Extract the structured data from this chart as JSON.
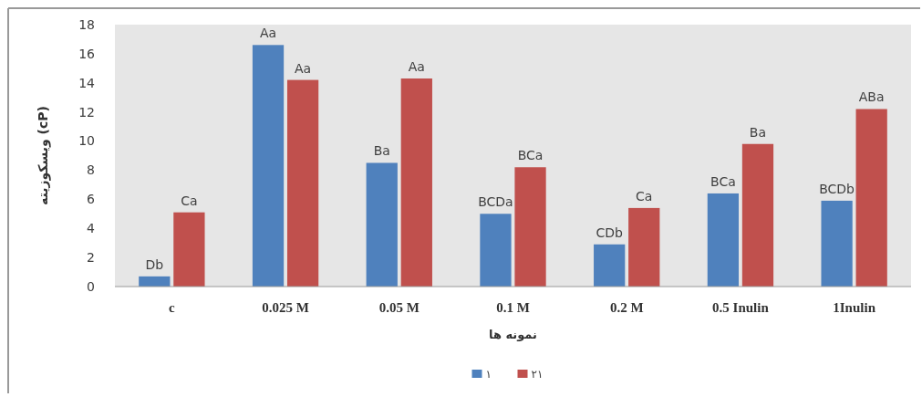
{
  "chart_data": {
    "type": "bar",
    "xlabel": "نمونه ها",
    "ylabel": "ویسکوزیته (cP)",
    "categories": [
      "c",
      "0.025 M",
      "0.05 M",
      "0.1 M",
      "0.2 M",
      "0.5 Inulin",
      "1Inulin"
    ],
    "series": [
      {
        "name": "۱",
        "color": "#4f81bd",
        "values": [
          0.7,
          16.6,
          8.5,
          5.0,
          2.9,
          6.4,
          5.9
        ],
        "value_labels": [
          "Db",
          "Aa",
          "Ba",
          "BCDa",
          "CDb",
          "BCa",
          "BCDb"
        ]
      },
      {
        "name": "۲۱",
        "color": "#c0504d",
        "values": [
          5.1,
          14.2,
          14.3,
          8.2,
          5.4,
          9.8,
          12.2
        ],
        "value_labels": [
          "Ca",
          "Aa",
          "Aa",
          "BCa",
          "Ca",
          "Ba",
          "ABa"
        ]
      }
    ],
    "ylim": [
      0,
      18
    ],
    "yticks": [
      0,
      2,
      4,
      6,
      8,
      10,
      12,
      14,
      16,
      18
    ],
    "grid": false,
    "legend": "bottom"
  }
}
